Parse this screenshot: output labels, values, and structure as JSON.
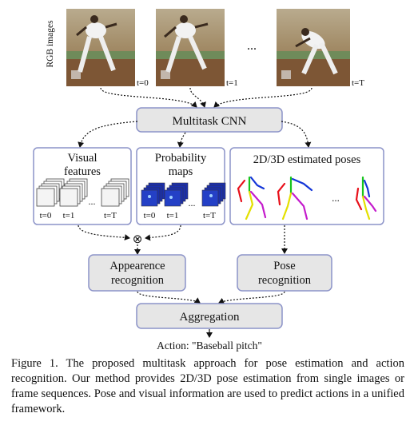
{
  "rgb_label": "RGB images",
  "frames": [
    {
      "label": "t=0"
    },
    {
      "label": "t=1"
    },
    {
      "label": "t=T"
    }
  ],
  "ellipsis": "...",
  "cnn_label": "Multitask CNN",
  "panels": {
    "visual": {
      "title_line1": "Visual",
      "title_line2": "features",
      "stack_labels": [
        "t=0",
        "t=1",
        "t=T"
      ]
    },
    "prob": {
      "title_line1": "Probability",
      "title_line2": "maps",
      "stack_labels": [
        "t=0",
        "t=1",
        "t=T"
      ]
    },
    "poses": {
      "title": "2D/3D estimated poses"
    }
  },
  "combine_symbol": "⊗",
  "appearance_line1": "Appearence",
  "appearance_line2": "recognition",
  "pose_line1": "Pose",
  "pose_line2": "recognition",
  "aggregation_label": "Aggregation",
  "action_label": "Action: \"Baseball pitch\"",
  "caption": "Figure 1.   The proposed multitask approach for pose estimation and action recognition.  Our method provides 2D/3D pose estimation from single images or frame sequences.  Pose and visual information are used to predict actions in a unified framework.",
  "colors": {
    "box_fill": "#e6e6e6",
    "box_stroke": "#8c93c8",
    "panel_stroke": "#8c93c8",
    "heatmap": "#1a2fb0",
    "limb_red": "#e8101a",
    "limb_green": "#18c41c",
    "limb_blue": "#1436d8",
    "limb_yellow": "#e3e000",
    "limb_magenta": "#c41ccc"
  }
}
